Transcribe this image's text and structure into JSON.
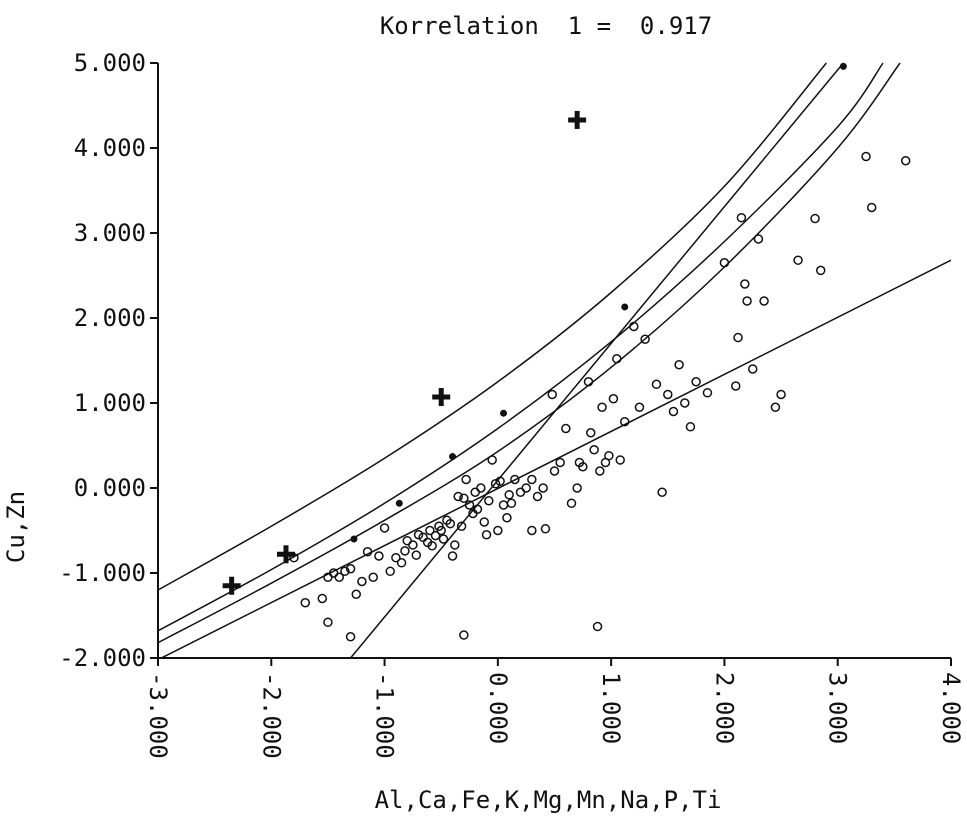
{
  "chart_data": {
    "type": "scatter",
    "title": "Korrelation  1 =  0.917",
    "xlabel": "Al,Ca,Fe,K,Mg,Mn,Na,P,Ti",
    "ylabel": "Cu,Zn",
    "xlim": [
      -3.0,
      4.0
    ],
    "ylim": [
      -2.0,
      5.0
    ],
    "x_ticks": [
      -3.0,
      -2.0,
      -1.0,
      0.0,
      1.0,
      2.0,
      3.0,
      4.0
    ],
    "x_tick_labels": [
      "-3.000",
      "-2.000",
      "-1.000",
      "0.000",
      "1.000",
      "2.000",
      "3.000",
      "4.000"
    ],
    "y_ticks": [
      -2.0,
      -1.0,
      0.0,
      1.0,
      2.0,
      3.0,
      4.0,
      5.0
    ],
    "y_tick_labels": [
      "-2.000",
      "-1.000",
      "0.000",
      "1.000",
      "2.000",
      "3.000",
      "4.000",
      "5.000"
    ],
    "grid": false,
    "curves": [
      {
        "kind": "curve",
        "points": [
          [
            -3.0,
            -1.2
          ],
          [
            -2.0,
            -0.45
          ],
          [
            -1.0,
            0.35
          ],
          [
            0.0,
            1.25
          ],
          [
            1.0,
            2.3
          ],
          [
            2.0,
            3.55
          ],
          [
            2.9,
            5.0
          ]
        ]
      },
      {
        "kind": "curve",
        "points": [
          [
            -3.0,
            -1.68
          ],
          [
            -2.0,
            -0.96
          ],
          [
            -1.0,
            -0.18
          ],
          [
            0.0,
            0.7
          ],
          [
            1.0,
            1.72
          ],
          [
            2.0,
            2.9
          ],
          [
            3.0,
            4.25
          ],
          [
            3.4,
            5.0
          ]
        ]
      },
      {
        "kind": "curve",
        "points": [
          [
            -3.0,
            -1.82
          ],
          [
            -2.0,
            -1.12
          ],
          [
            -1.0,
            -0.38
          ],
          [
            0.0,
            0.43
          ],
          [
            1.0,
            1.42
          ],
          [
            2.0,
            2.6
          ],
          [
            3.0,
            4.0
          ],
          [
            3.55,
            5.0
          ]
        ]
      },
      {
        "kind": "line",
        "points": [
          [
            -3.0,
            -2.02
          ],
          [
            4.0,
            2.68
          ]
        ]
      },
      {
        "kind": "line",
        "points": [
          [
            -1.3,
            -2.0
          ],
          [
            3.05,
            5.0
          ]
        ]
      }
    ],
    "series": [
      {
        "marker": "open-circle",
        "points": [
          [
            -1.8,
            -0.82
          ],
          [
            -1.7,
            -1.35
          ],
          [
            -1.55,
            -1.3
          ],
          [
            -1.5,
            -1.05
          ],
          [
            -1.45,
            -1.0
          ],
          [
            -1.5,
            -1.58
          ],
          [
            -1.4,
            -1.05
          ],
          [
            -1.35,
            -0.98
          ],
          [
            -1.3,
            -1.75
          ],
          [
            -1.25,
            -1.25
          ],
          [
            -1.2,
            -1.1
          ],
          [
            -1.15,
            -0.75
          ],
          [
            -1.1,
            -1.05
          ],
          [
            -1.05,
            -0.8
          ],
          [
            -1.0,
            -0.47
          ],
          [
            -0.95,
            -0.98
          ],
          [
            -0.9,
            -0.82
          ],
          [
            -0.85,
            -0.88
          ],
          [
            -0.82,
            -0.74
          ],
          [
            -0.8,
            -0.62
          ],
          [
            -0.75,
            -0.67
          ],
          [
            -0.72,
            -0.79
          ],
          [
            -0.7,
            -0.55
          ],
          [
            -0.66,
            -0.58
          ],
          [
            -0.62,
            -0.64
          ],
          [
            -0.6,
            -0.5
          ],
          [
            -0.58,
            -0.68
          ],
          [
            -0.55,
            -0.56
          ],
          [
            -0.52,
            -0.45
          ],
          [
            -0.5,
            -0.5
          ],
          [
            -0.48,
            -0.6
          ],
          [
            -0.45,
            -0.38
          ],
          [
            -0.42,
            -0.42
          ],
          [
            -0.4,
            -0.8
          ],
          [
            -0.38,
            -0.67
          ],
          [
            -0.35,
            -0.1
          ],
          [
            -0.32,
            -0.45
          ],
          [
            -0.3,
            -0.12
          ],
          [
            -0.28,
            0.1
          ],
          [
            -0.25,
            -0.2
          ],
          [
            -0.22,
            -0.3
          ],
          [
            -0.2,
            -0.05
          ],
          [
            -0.18,
            -0.25
          ],
          [
            -0.15,
            0.0
          ],
          [
            -0.12,
            -0.4
          ],
          [
            -0.1,
            -0.55
          ],
          [
            -0.08,
            -0.15
          ],
          [
            -0.05,
            0.33
          ],
          [
            -0.02,
            0.05
          ],
          [
            0.0,
            -0.5
          ],
          [
            0.02,
            0.08
          ],
          [
            0.05,
            -0.2
          ],
          [
            0.08,
            -0.35
          ],
          [
            0.1,
            -0.08
          ],
          [
            0.12,
            -0.18
          ],
          [
            0.15,
            0.1
          ],
          [
            0.2,
            -0.05
          ],
          [
            0.25,
            0.0
          ],
          [
            0.3,
            0.1
          ],
          [
            0.35,
            -0.1
          ],
          [
            0.4,
            0.0
          ],
          [
            0.42,
            -0.48
          ],
          [
            0.48,
            1.1
          ],
          [
            0.5,
            0.2
          ],
          [
            0.55,
            0.3
          ],
          [
            0.6,
            0.7
          ],
          [
            0.65,
            -0.18
          ],
          [
            0.7,
            0.0
          ],
          [
            0.72,
            0.3
          ],
          [
            0.75,
            0.25
          ],
          [
            0.8,
            1.25
          ],
          [
            0.82,
            0.65
          ],
          [
            0.85,
            0.45
          ],
          [
            0.88,
            -1.63
          ],
          [
            0.9,
            0.2
          ],
          [
            0.92,
            0.95
          ],
          [
            0.95,
            0.3
          ],
          [
            0.98,
            0.38
          ],
          [
            1.02,
            1.05
          ],
          [
            1.05,
            1.52
          ],
          [
            1.08,
            0.33
          ],
          [
            1.12,
            0.78
          ],
          [
            1.2,
            1.9
          ],
          [
            1.25,
            0.95
          ],
          [
            1.3,
            1.75
          ],
          [
            1.4,
            1.22
          ],
          [
            1.45,
            -0.05
          ],
          [
            1.5,
            1.1
          ],
          [
            1.55,
            0.9
          ],
          [
            1.6,
            1.45
          ],
          [
            1.65,
            1.0
          ],
          [
            1.7,
            0.72
          ],
          [
            1.75,
            1.25
          ],
          [
            1.85,
            1.12
          ],
          [
            2.0,
            2.65
          ],
          [
            2.1,
            1.2
          ],
          [
            2.12,
            1.77
          ],
          [
            2.15,
            3.18
          ],
          [
            2.18,
            2.4
          ],
          [
            2.2,
            2.2
          ],
          [
            2.25,
            1.4
          ],
          [
            2.3,
            2.93
          ],
          [
            2.35,
            2.2
          ],
          [
            2.45,
            0.95
          ],
          [
            2.5,
            1.1
          ],
          [
            2.65,
            2.68
          ],
          [
            2.8,
            3.17
          ],
          [
            2.85,
            2.56
          ],
          [
            3.25,
            3.9
          ],
          [
            3.3,
            3.3
          ],
          [
            3.6,
            3.85
          ],
          [
            -1.3,
            -0.95
          ],
          [
            -0.3,
            -1.73
          ],
          [
            0.3,
            -0.5
          ]
        ]
      },
      {
        "marker": "filled-dot",
        "points": [
          [
            -1.27,
            -0.6
          ],
          [
            -0.87,
            -0.18
          ],
          [
            -0.4,
            0.37
          ],
          [
            0.05,
            0.88
          ],
          [
            1.12,
            2.13
          ],
          [
            3.05,
            4.96
          ]
        ]
      },
      {
        "marker": "cross",
        "points": [
          [
            -2.35,
            -1.15
          ],
          [
            -1.87,
            -0.78
          ],
          [
            -0.5,
            1.07
          ],
          [
            0.7,
            4.33
          ]
        ]
      }
    ]
  }
}
